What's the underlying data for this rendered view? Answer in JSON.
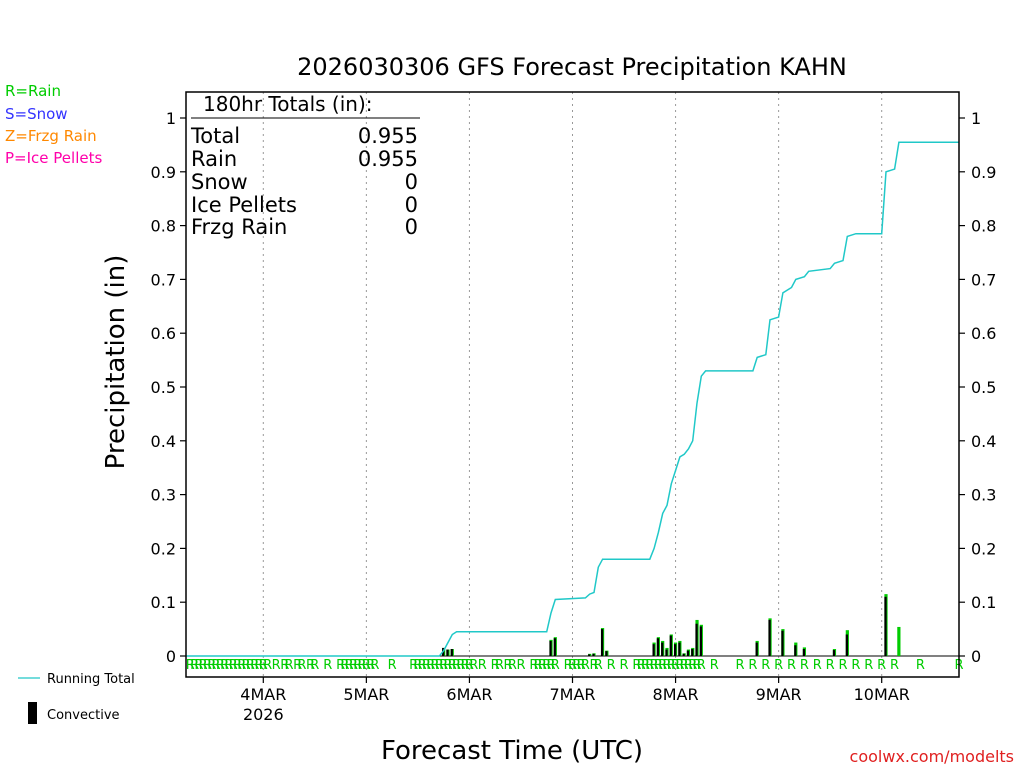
{
  "chart_data": {
    "type": "bar",
    "title": "2026030306 GFS Forecast Precipitation KAHN",
    "xlabel": "Forecast Time (UTC)",
    "ylabel": "Precipitation (in)",
    "ylim": [
      0,
      1.05
    ],
    "xlim_hours": [
      0,
      180
    ],
    "y_ticks": [
      0,
      0.1,
      0.2,
      0.3,
      0.4,
      0.5,
      0.6,
      0.7,
      0.8,
      0.9,
      1
    ],
    "y_tick_labels": [
      "0",
      "0.1",
      "0.2",
      "0.3",
      "0.4",
      "0.5",
      "0.6",
      "0.7",
      "0.8",
      "0.9",
      "1"
    ],
    "x_ticks": [
      {
        "hour": 18,
        "label": "4MAR",
        "sublabel": "2026"
      },
      {
        "hour": 42,
        "label": "5MAR",
        "sublabel": ""
      },
      {
        "hour": 66,
        "label": "6MAR",
        "sublabel": ""
      },
      {
        "hour": 90,
        "label": "7MAR",
        "sublabel": ""
      },
      {
        "hour": 114,
        "label": "8MAR",
        "sublabel": ""
      },
      {
        "hour": 138,
        "label": "9MAR",
        "sublabel": ""
      },
      {
        "hour": 162,
        "label": "10MAR",
        "sublabel": ""
      }
    ],
    "legend_types": [
      {
        "text": "R=Rain",
        "color": "#00cc00"
      },
      {
        "text": "S=Snow",
        "color": "#3333ff"
      },
      {
        "text": "Z=Frzg Rain",
        "color": "#ff8800"
      },
      {
        "text": "P=Ice Pellets",
        "color": "#ff00aa"
      }
    ],
    "legend_series": {
      "running_total": "Running Total",
      "convective": "Convective"
    },
    "totals_box": {
      "header": "180hr Totals (in):",
      "rows": [
        {
          "label": "Total",
          "value": "0.955"
        },
        {
          "label": "Rain",
          "value": "0.955"
        },
        {
          "label": "Snow",
          "value": "0"
        },
        {
          "label": "Ice Pellets",
          "value": "0"
        },
        {
          "label": "Frzg Rain",
          "value": "0"
        }
      ]
    },
    "ptype_marker": "R",
    "ptype_marker_hours": [
      1,
      2,
      3,
      4,
      5,
      6,
      7,
      8,
      9,
      10,
      11,
      12,
      13,
      14,
      15,
      16,
      17,
      18,
      19,
      21,
      23,
      24,
      26,
      27,
      29,
      30,
      33,
      36,
      37,
      38,
      39,
      40,
      41,
      42,
      43,
      44,
      48,
      53,
      54,
      55,
      56,
      57,
      58,
      59,
      60,
      61,
      62,
      63,
      64,
      65,
      66,
      67,
      69,
      72,
      73,
      75,
      76,
      78,
      81,
      82,
      83,
      84,
      85,
      86,
      89,
      90,
      91,
      92,
      93,
      95,
      96,
      99,
      102,
      105,
      106,
      107,
      108,
      109,
      110,
      111,
      112,
      113,
      114,
      115,
      116,
      117,
      118,
      119,
      120,
      123,
      129,
      132,
      135,
      138,
      141,
      144,
      147,
      150,
      153,
      156,
      159,
      162,
      165,
      171,
      180
    ],
    "running_total": [
      [
        0,
        0
      ],
      [
        59,
        0
      ],
      [
        60,
        0.01
      ],
      [
        61,
        0.025
      ],
      [
        62,
        0.04
      ],
      [
        63,
        0.045
      ],
      [
        84,
        0.045
      ],
      [
        85,
        0.08
      ],
      [
        86,
        0.105
      ],
      [
        93,
        0.108
      ],
      [
        94,
        0.115
      ],
      [
        95,
        0.118
      ],
      [
        96,
        0.165
      ],
      [
        97,
        0.18
      ],
      [
        108,
        0.18
      ],
      [
        109,
        0.2
      ],
      [
        110,
        0.23
      ],
      [
        111,
        0.265
      ],
      [
        112,
        0.28
      ],
      [
        113,
        0.32
      ],
      [
        114,
        0.345
      ],
      [
        115,
        0.37
      ],
      [
        116,
        0.375
      ],
      [
        117,
        0.385
      ],
      [
        118,
        0.4
      ],
      [
        119,
        0.47
      ],
      [
        120,
        0.52
      ],
      [
        121,
        0.53
      ],
      [
        132,
        0.53
      ],
      [
        133,
        0.555
      ],
      [
        135,
        0.56
      ],
      [
        136,
        0.625
      ],
      [
        138,
        0.63
      ],
      [
        139,
        0.675
      ],
      [
        141,
        0.685
      ],
      [
        142,
        0.7
      ],
      [
        144,
        0.705
      ],
      [
        145,
        0.715
      ],
      [
        150,
        0.72
      ],
      [
        151,
        0.73
      ],
      [
        153,
        0.735
      ],
      [
        154,
        0.78
      ],
      [
        156,
        0.785
      ],
      [
        162,
        0.785
      ],
      [
        163,
        0.9
      ],
      [
        165,
        0.905
      ],
      [
        166,
        0.955
      ],
      [
        180,
        0.955
      ]
    ],
    "bars": [
      {
        "hour": 60,
        "total": 0.015,
        "convective": 0.015
      },
      {
        "hour": 61,
        "total": 0.012,
        "convective": 0.012
      },
      {
        "hour": 62,
        "total": 0.013,
        "convective": 0.013
      },
      {
        "hour": 85,
        "total": 0.03,
        "convective": 0.028
      },
      {
        "hour": 86,
        "total": 0.035,
        "convective": 0.033
      },
      {
        "hour": 94,
        "total": 0.004,
        "convective": 0.003
      },
      {
        "hour": 95,
        "total": 0.005,
        "convective": 0.004
      },
      {
        "hour": 97,
        "total": 0.052,
        "convective": 0.05
      },
      {
        "hour": 98,
        "total": 0.01,
        "convective": 0.009
      },
      {
        "hour": 109,
        "total": 0.025,
        "convective": 0.022
      },
      {
        "hour": 110,
        "total": 0.035,
        "convective": 0.033
      },
      {
        "hour": 111,
        "total": 0.028,
        "convective": 0.025
      },
      {
        "hour": 112,
        "total": 0.015,
        "convective": 0.012
      },
      {
        "hour": 113,
        "total": 0.04,
        "convective": 0.038
      },
      {
        "hour": 114,
        "total": 0.025,
        "convective": 0.022
      },
      {
        "hour": 115,
        "total": 0.028,
        "convective": 0.025
      },
      {
        "hour": 116,
        "total": 0.005,
        "convective": 0.004
      },
      {
        "hour": 117,
        "total": 0.012,
        "convective": 0.01
      },
      {
        "hour": 118,
        "total": 0.015,
        "convective": 0.013
      },
      {
        "hour": 119,
        "total": 0.067,
        "convective": 0.06
      },
      {
        "hour": 120,
        "total": 0.058,
        "convective": 0.055
      },
      {
        "hour": 133,
        "total": 0.028,
        "convective": 0.025
      },
      {
        "hour": 136,
        "total": 0.07,
        "convective": 0.067
      },
      {
        "hour": 139,
        "total": 0.05,
        "convective": 0.047
      },
      {
        "hour": 142,
        "total": 0.025,
        "convective": 0.02
      },
      {
        "hour": 144,
        "total": 0.016,
        "convective": 0.013
      },
      {
        "hour": 151,
        "total": 0.013,
        "convective": 0.011
      },
      {
        "hour": 154,
        "total": 0.048,
        "convective": 0.04
      },
      {
        "hour": 163,
        "total": 0.115,
        "convective": 0.11
      },
      {
        "hour": 166,
        "total": 0.054,
        "convective": 0
      }
    ]
  },
  "credit": "coolwx.com/modelts",
  "colors": {
    "rain": "#00cc00",
    "convective": "#000000",
    "running_total": "#20c8c8",
    "grid": "#999999",
    "credit": "#e02020"
  }
}
